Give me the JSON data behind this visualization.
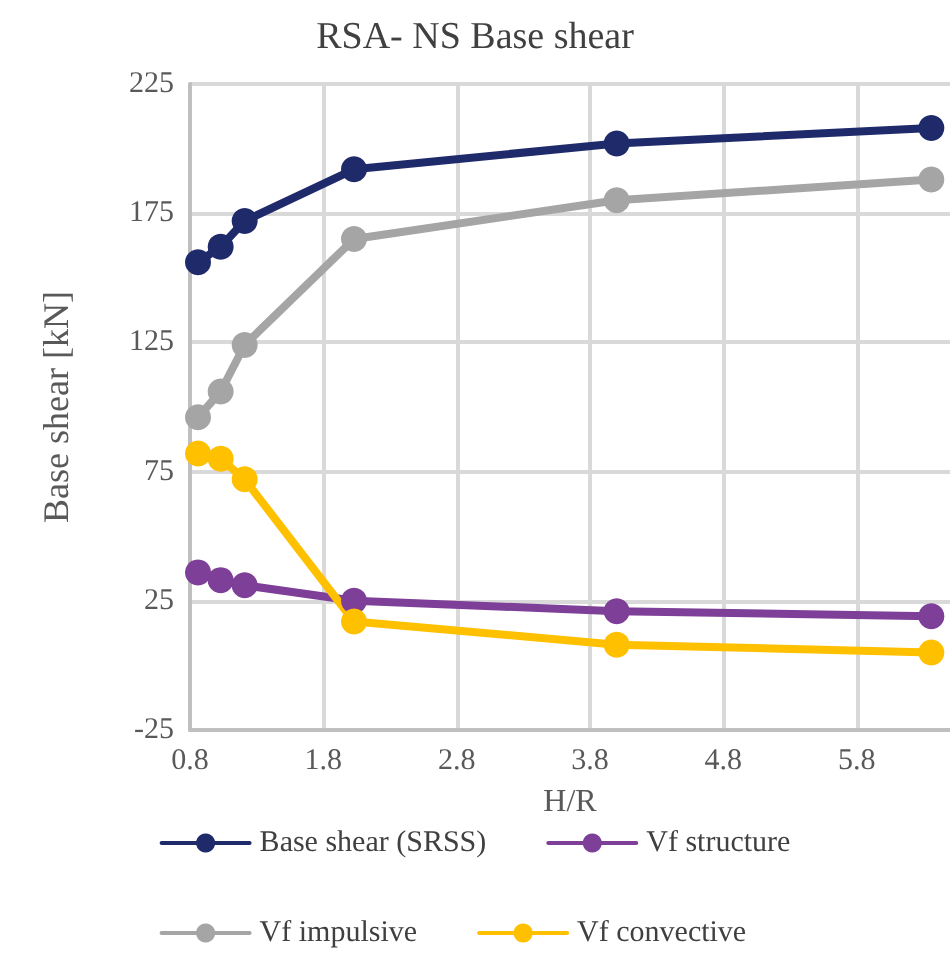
{
  "chart_data": {
    "type": "line",
    "title": "RSA- NS Base shear",
    "xlabel": "H/R",
    "ylabel": "Base shear [kN]",
    "x": [
      0.86,
      1.03,
      1.21,
      2.03,
      4.0,
      6.36
    ],
    "series": [
      {
        "name": "Base shear (SRSS)",
        "color": "#1f2a6b",
        "values": [
          156,
          162,
          172,
          192,
          202,
          208
        ]
      },
      {
        "name": "Vf structure",
        "color": "#7e3f98",
        "values": [
          36,
          33,
          31,
          25,
          21,
          19
        ]
      },
      {
        "name": "Vf impulsive",
        "color": "#a5a5a5",
        "values": [
          96,
          106,
          124,
          165,
          180,
          188
        ]
      },
      {
        "name": "Vf convective",
        "color": "#ffc000",
        "values": [
          82,
          80,
          72,
          17,
          8,
          5
        ]
      }
    ],
    "xlim": [
      0.8,
      6.5
    ],
    "xticks": [
      0.8,
      1.8,
      2.8,
      3.8,
      4.8,
      5.8
    ],
    "ylim": [
      -25,
      225
    ],
    "yticks": [
      -25,
      25,
      75,
      125,
      175,
      225
    ],
    "grid": true,
    "legend": "bottom",
    "marker": "circle",
    "line_style": "solid"
  }
}
